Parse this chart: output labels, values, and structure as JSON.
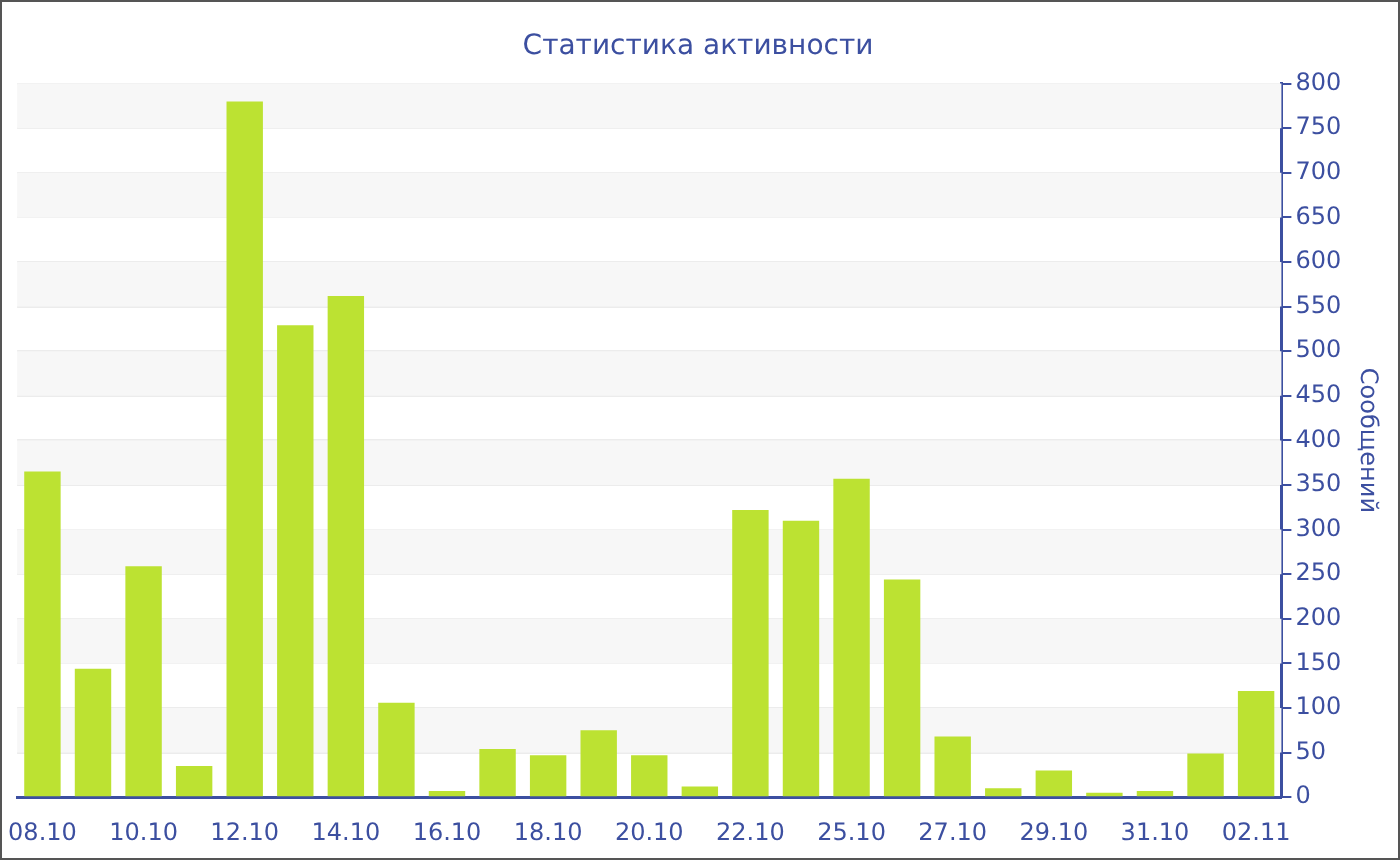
{
  "chart_data": {
    "type": "bar",
    "title": "Статистика активности",
    "ylabel": "Сообщений",
    "categories": [
      "08.10",
      null,
      "10.10",
      null,
      "12.10",
      null,
      "14.10",
      null,
      "16.10",
      null,
      "18.10",
      null,
      "20.10",
      null,
      "22.10",
      null,
      "25.10",
      null,
      "27.10",
      null,
      "29.10",
      null,
      "31.10",
      null,
      "02.11"
    ],
    "values": [
      365,
      144,
      259,
      35,
      780,
      529,
      562,
      106,
      7,
      54,
      47,
      75,
      47,
      12,
      322,
      310,
      357,
      244,
      68,
      10,
      30,
      5,
      7,
      49,
      119
    ],
    "color": "#bce232",
    "ylim": [
      0,
      800
    ],
    "yticks": [
      0,
      50,
      100,
      150,
      200,
      250,
      300,
      350,
      400,
      450,
      500,
      550,
      600,
      650,
      700,
      750,
      800
    ],
    "grid": "y",
    "legend": false
  }
}
